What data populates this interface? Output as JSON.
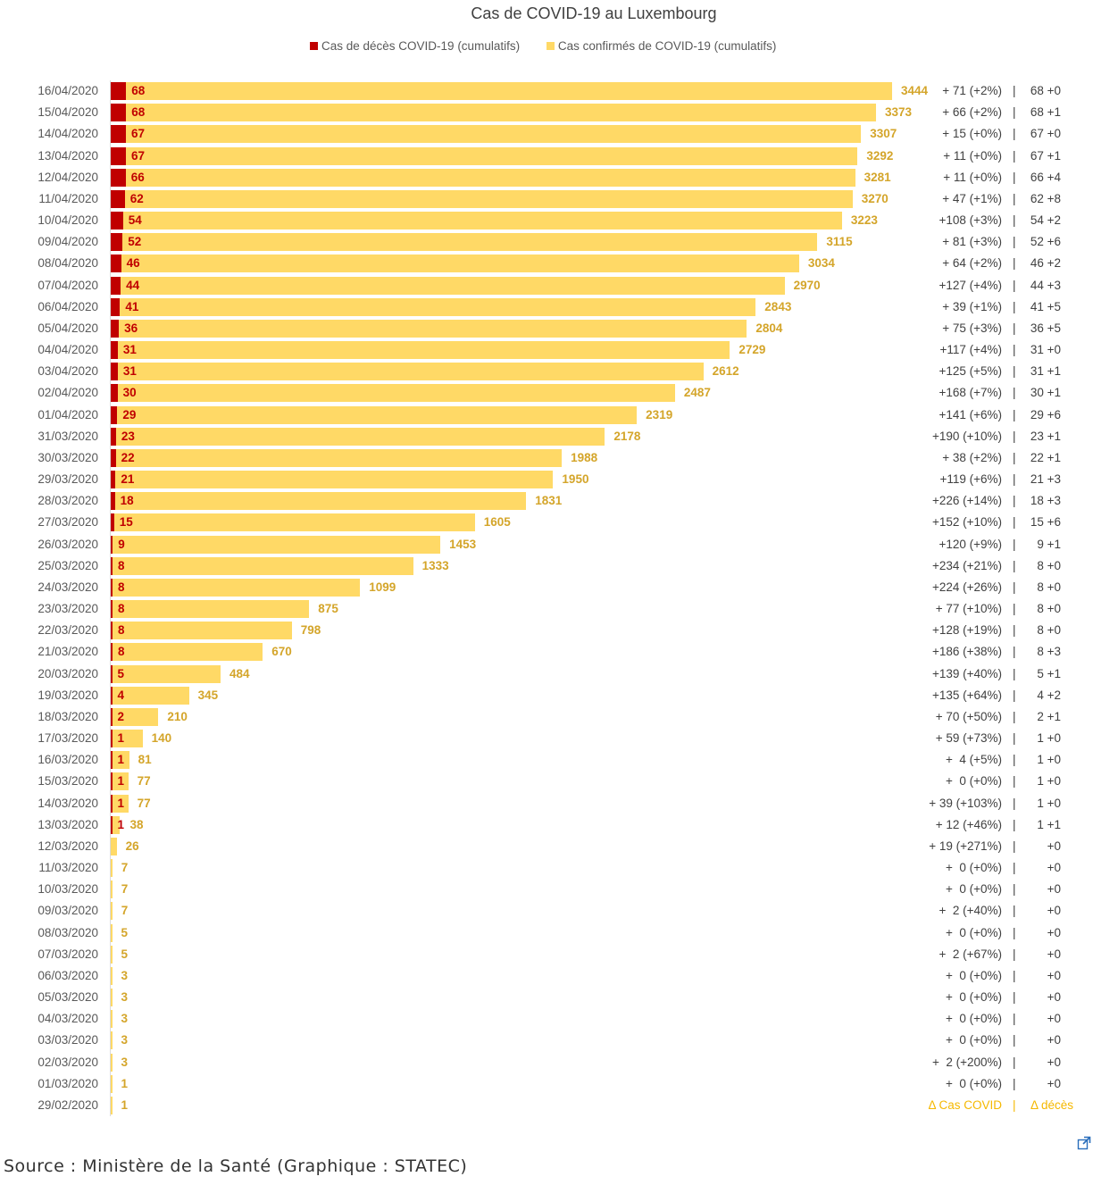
{
  "chart_data": {
    "type": "bar",
    "orientation": "horizontal",
    "stacking": "overlapped",
    "title": "Cas de COVID-19 au Luxembourg",
    "legend_position": "top",
    "colors": {
      "deaths": "#C00000",
      "cases": "#FFD966"
    },
    "categories": [
      "16/04/2020",
      "15/04/2020",
      "14/04/2020",
      "13/04/2020",
      "12/04/2020",
      "11/04/2020",
      "10/04/2020",
      "09/04/2020",
      "08/04/2020",
      "07/04/2020",
      "06/04/2020",
      "05/04/2020",
      "04/04/2020",
      "03/04/2020",
      "02/04/2020",
      "01/04/2020",
      "31/03/2020",
      "30/03/2020",
      "29/03/2020",
      "28/03/2020",
      "27/03/2020",
      "26/03/2020",
      "25/03/2020",
      "24/03/2020",
      "23/03/2020",
      "22/03/2020",
      "21/03/2020",
      "20/03/2020",
      "19/03/2020",
      "18/03/2020",
      "17/03/2020",
      "16/03/2020",
      "15/03/2020",
      "14/03/2020",
      "13/03/2020",
      "12/03/2020",
      "11/03/2020",
      "10/03/2020",
      "09/03/2020",
      "08/03/2020",
      "07/03/2020",
      "06/03/2020",
      "05/03/2020",
      "04/03/2020",
      "03/03/2020",
      "02/03/2020",
      "01/03/2020",
      "29/02/2020"
    ],
    "series": [
      {
        "name": "Cas de décès  COVID-19 (cumulatifs)",
        "values": [
          68,
          68,
          67,
          67,
          66,
          62,
          54,
          52,
          46,
          44,
          41,
          36,
          31,
          31,
          30,
          29,
          23,
          22,
          21,
          18,
          15,
          9,
          8,
          8,
          8,
          8,
          8,
          5,
          4,
          2,
          1,
          1,
          1,
          1,
          1,
          0,
          0,
          0,
          0,
          0,
          0,
          0,
          0,
          0,
          0,
          0,
          0,
          0
        ]
      },
      {
        "name": "Cas confirmés de COVID-19 (cumulatifs)",
        "values": [
          3444,
          3373,
          3307,
          3292,
          3281,
          3270,
          3223,
          3115,
          3034,
          2970,
          2843,
          2804,
          2729,
          2612,
          2487,
          2319,
          2178,
          1988,
          1950,
          1831,
          1605,
          1453,
          1333,
          1099,
          875,
          798,
          670,
          484,
          345,
          210,
          140,
          81,
          77,
          77,
          38,
          26,
          7,
          7,
          7,
          5,
          5,
          3,
          3,
          3,
          3,
          3,
          1,
          1
        ]
      }
    ],
    "delta_cases": [
      "+ 71 (+2%)",
      "+ 66 (+2%)",
      "+ 15 (+0%)",
      "+ 11 (+0%)",
      "+ 11 (+0%)",
      "+ 47 (+1%)",
      "+108 (+3%)",
      "+ 81 (+3%)",
      "+ 64 (+2%)",
      "+127 (+4%)",
      "+ 39 (+1%)",
      "+ 75 (+3%)",
      "+117 (+4%)",
      "+125 (+5%)",
      "+168 (+7%)",
      "+141 (+6%)",
      "+190 (+10%)",
      "+ 38 (+2%)",
      "+119 (+6%)",
      "+226 (+14%)",
      "+152 (+10%)",
      "+120 (+9%)",
      "+234 (+21%)",
      "+224 (+26%)",
      "+ 77 (+10%)",
      "+128 (+19%)",
      "+186 (+38%)",
      "+139 (+40%)",
      "+135 (+64%)",
      "+ 70 (+50%)",
      "+ 59 (+73%)",
      "+  4 (+5%)",
      "+  0 (+0%)",
      "+ 39 (+103%)",
      "+ 12 (+46%)",
      "+ 19 (+271%)",
      "+  0 (+0%)",
      "+  0 (+0%)",
      "+  2 (+40%)",
      "+  0 (+0%)",
      "+  2 (+67%)",
      "+  0 (+0%)",
      "+  0 (+0%)",
      "+  0 (+0%)",
      "+  0 (+0%)",
      "+  2 (+200%)",
      "+  0 (+0%)"
    ],
    "delta_deaths": [
      "68 +0",
      "68 +1",
      "67 +0",
      "67 +1",
      "66 +4",
      "62 +8",
      "54 +2",
      "52 +6",
      "46 +2",
      "44 +3",
      "41 +5",
      "36 +5",
      "31 +0",
      "31 +1",
      "30 +1",
      "29 +6",
      "23 +1",
      "22 +1",
      "21 +3",
      "18 +3",
      "15 +6",
      "9 +1",
      "8 +0",
      "8 +0",
      "8 +0",
      "8 +0",
      "8 +3",
      "5 +1",
      "4 +2",
      "2 +1",
      "1 +0",
      "1 +0",
      "1 +0",
      "1 +0",
      "1 +1",
      "+0",
      "+0",
      "+0",
      "+0",
      "+0",
      "+0",
      "+0",
      "+0",
      "+0",
      "+0",
      "+0",
      "+0"
    ],
    "separator": "|",
    "footer_left": "Δ Cas COVID",
    "footer_right": "Δ décès",
    "xlim": [
      0,
      3444
    ]
  },
  "source": "Source : Ministère de la Santé (Graphique : STATEC)",
  "icons": {
    "external": "external-link-icon"
  }
}
